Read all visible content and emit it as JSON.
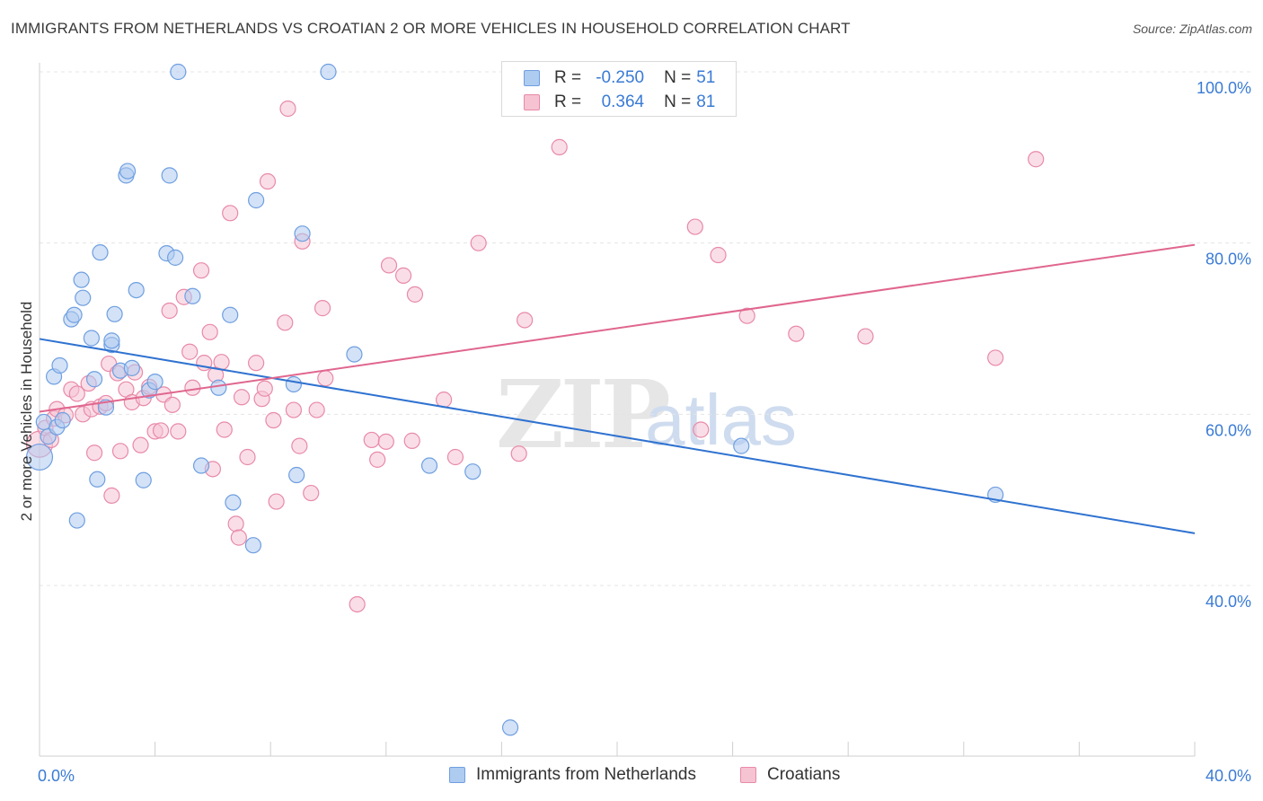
{
  "title": "IMMIGRANTS FROM NETHERLANDS VS CROATIAN 2 OR MORE VEHICLES IN HOUSEHOLD CORRELATION CHART",
  "source": "Source: ZipAtlas.com",
  "watermark": {
    "zip": "ZIP",
    "atlas": "atlas"
  },
  "legend_top": {
    "rows": [
      {
        "r_label": "R =",
        "r_value": "-0.250",
        "n_label": "N =",
        "n_value": "51"
      },
      {
        "r_label": "R =",
        "r_value": "0.364",
        "n_label": "N =",
        "n_value": "81"
      }
    ]
  },
  "legend_bottom": [
    "Immigrants from Netherlands",
    "Croatians"
  ],
  "colors": {
    "blue_fill": "#aecbf0",
    "blue_stroke": "#6f9fe0",
    "blue_line": "#2f72d0",
    "pink_fill": "#f6c3d3",
    "pink_stroke": "#e88aa8",
    "pink_line": "#e0668e",
    "axis_label": "#3a7bd5",
    "grid": "#e4e4e4"
  },
  "chart_data": {
    "type": "scatter",
    "title": "IMMIGRANTS FROM NETHERLANDS VS CROATIAN 2 OR MORE VEHICLES IN HOUSEHOLD CORRELATION CHART",
    "xlabel": "",
    "ylabel": "2 or more Vehicles in Household",
    "xlim": [
      0,
      40
    ],
    "ylim": [
      21,
      102
    ],
    "x_tick_labels": [
      "0.0%",
      "40.0%"
    ],
    "y_ticks": [
      40,
      60,
      80,
      100
    ],
    "y_tick_labels": [
      "40.0%",
      "60.0%",
      "80.0%",
      "100.0%"
    ],
    "series": [
      {
        "name": "Immigrants from Netherlands",
        "r": -0.25,
        "n": 51,
        "trend": {
          "x": [
            0,
            40
          ],
          "y": [
            68.8,
            46.1
          ]
        },
        "points": [
          [
            0.0,
            55.0,
            1.7
          ],
          [
            0.15,
            59.1,
            1
          ],
          [
            0.3,
            57.4,
            1
          ],
          [
            0.5,
            64.4,
            1
          ],
          [
            0.6,
            58.5,
            1
          ],
          [
            0.7,
            65.7,
            1
          ],
          [
            0.8,
            59.3,
            1
          ],
          [
            1.1,
            71.1,
            1
          ],
          [
            1.2,
            71.6,
            1
          ],
          [
            1.3,
            47.6,
            1
          ],
          [
            1.45,
            75.7,
            1
          ],
          [
            1.5,
            73.6,
            1
          ],
          [
            1.8,
            68.9,
            1
          ],
          [
            1.9,
            64.1,
            1
          ],
          [
            2.0,
            52.4,
            1
          ],
          [
            2.1,
            78.9,
            1
          ],
          [
            2.3,
            60.8,
            1
          ],
          [
            2.5,
            68.1,
            1
          ],
          [
            2.5,
            68.6,
            1
          ],
          [
            2.6,
            71.7,
            1
          ],
          [
            2.8,
            65.1,
            1
          ],
          [
            3.0,
            87.9,
            1
          ],
          [
            3.05,
            88.4,
            1
          ],
          [
            3.2,
            65.4,
            1
          ],
          [
            3.35,
            74.5,
            1
          ],
          [
            3.6,
            52.3,
            1
          ],
          [
            3.8,
            62.8,
            1
          ],
          [
            4.0,
            63.8,
            1
          ],
          [
            4.4,
            78.8,
            1
          ],
          [
            4.5,
            87.9,
            1
          ],
          [
            4.7,
            78.3,
            1
          ],
          [
            4.8,
            100.0,
            1
          ],
          [
            5.3,
            73.8,
            1
          ],
          [
            5.6,
            54.0,
            1
          ],
          [
            6.2,
            63.1,
            1
          ],
          [
            6.6,
            71.6,
            1
          ],
          [
            6.7,
            49.7,
            1
          ],
          [
            7.4,
            44.7,
            1
          ],
          [
            7.5,
            85.0,
            1
          ],
          [
            8.8,
            63.5,
            1
          ],
          [
            8.9,
            52.9,
            1
          ],
          [
            9.1,
            81.1,
            1
          ],
          [
            10.0,
            100.0,
            1
          ],
          [
            10.9,
            67.0,
            1
          ],
          [
            13.5,
            54.0,
            1
          ],
          [
            15.0,
            53.3,
            1
          ],
          [
            16.3,
            23.4,
            1
          ],
          [
            24.3,
            56.3,
            1
          ],
          [
            33.1,
            50.6,
            1
          ]
        ]
      },
      {
        "name": "Croatians",
        "r": 0.364,
        "n": 81,
        "trend": {
          "x": [
            0,
            40
          ],
          "y": [
            60.3,
            79.8
          ]
        },
        "points": [
          [
            0.0,
            56.5,
            1.7
          ],
          [
            0.2,
            58.4,
            1
          ],
          [
            0.4,
            57.0,
            1
          ],
          [
            0.5,
            59.5,
            1
          ],
          [
            0.6,
            60.6,
            1
          ],
          [
            0.9,
            59.9,
            1
          ],
          [
            1.1,
            62.9,
            1
          ],
          [
            1.3,
            62.4,
            1
          ],
          [
            1.5,
            60.0,
            1
          ],
          [
            1.7,
            63.6,
            1
          ],
          [
            1.8,
            60.6,
            1
          ],
          [
            1.9,
            55.5,
            1
          ],
          [
            2.1,
            60.9,
            1
          ],
          [
            2.3,
            61.3,
            1
          ],
          [
            2.4,
            65.9,
            1
          ],
          [
            2.5,
            50.5,
            1
          ],
          [
            2.7,
            64.8,
            1
          ],
          [
            2.8,
            55.7,
            1
          ],
          [
            3.0,
            62.9,
            1
          ],
          [
            3.2,
            61.4,
            1
          ],
          [
            3.3,
            64.9,
            1
          ],
          [
            3.5,
            56.4,
            1
          ],
          [
            3.6,
            61.9,
            1
          ],
          [
            3.8,
            63.2,
            1
          ],
          [
            4.0,
            58.0,
            1
          ],
          [
            4.2,
            58.1,
            1
          ],
          [
            4.3,
            62.3,
            1
          ],
          [
            4.5,
            72.1,
            1
          ],
          [
            4.6,
            61.1,
            1
          ],
          [
            4.8,
            58.0,
            1
          ],
          [
            5.0,
            73.7,
            1
          ],
          [
            5.2,
            67.3,
            1
          ],
          [
            5.3,
            63.1,
            1
          ],
          [
            5.6,
            76.8,
            1
          ],
          [
            5.7,
            66.0,
            1
          ],
          [
            5.9,
            69.6,
            1
          ],
          [
            6.0,
            53.6,
            1
          ],
          [
            6.1,
            64.6,
            1
          ],
          [
            6.3,
            66.1,
            1
          ],
          [
            6.4,
            58.2,
            1
          ],
          [
            6.6,
            83.5,
            1
          ],
          [
            6.8,
            47.2,
            1
          ],
          [
            6.9,
            45.6,
            1
          ],
          [
            7.0,
            62.0,
            1
          ],
          [
            7.2,
            55.0,
            1
          ],
          [
            7.5,
            66.0,
            1
          ],
          [
            7.7,
            61.8,
            1
          ],
          [
            7.8,
            63.0,
            1
          ],
          [
            7.9,
            87.2,
            1
          ],
          [
            8.1,
            59.3,
            1
          ],
          [
            8.2,
            49.8,
            1
          ],
          [
            8.5,
            70.7,
            1
          ],
          [
            8.6,
            95.7,
            1
          ],
          [
            8.8,
            60.5,
            1
          ],
          [
            9.0,
            56.3,
            1
          ],
          [
            9.1,
            80.2,
            1
          ],
          [
            9.4,
            50.8,
            1
          ],
          [
            9.6,
            60.5,
            1
          ],
          [
            9.8,
            72.4,
            1
          ],
          [
            9.9,
            64.2,
            1
          ],
          [
            11.0,
            37.8,
            1
          ],
          [
            11.5,
            57.0,
            1
          ],
          [
            11.7,
            54.7,
            1
          ],
          [
            12.0,
            56.8,
            1
          ],
          [
            12.1,
            77.4,
            1
          ],
          [
            12.6,
            76.2,
            1
          ],
          [
            12.9,
            56.9,
            1
          ],
          [
            13.0,
            74.0,
            1
          ],
          [
            14.0,
            61.7,
            1
          ],
          [
            14.4,
            55.0,
            1
          ],
          [
            15.2,
            80.0,
            1
          ],
          [
            16.6,
            55.4,
            1
          ],
          [
            16.8,
            71.0,
            1
          ],
          [
            18.0,
            91.2,
            1
          ],
          [
            22.7,
            81.9,
            1
          ],
          [
            22.9,
            58.2,
            1
          ],
          [
            23.5,
            78.6,
            1
          ],
          [
            24.5,
            71.5,
            1
          ],
          [
            26.2,
            69.4,
            1
          ],
          [
            28.6,
            69.1,
            1
          ],
          [
            33.1,
            66.6,
            1
          ],
          [
            34.5,
            89.8,
            1
          ]
        ]
      }
    ]
  }
}
